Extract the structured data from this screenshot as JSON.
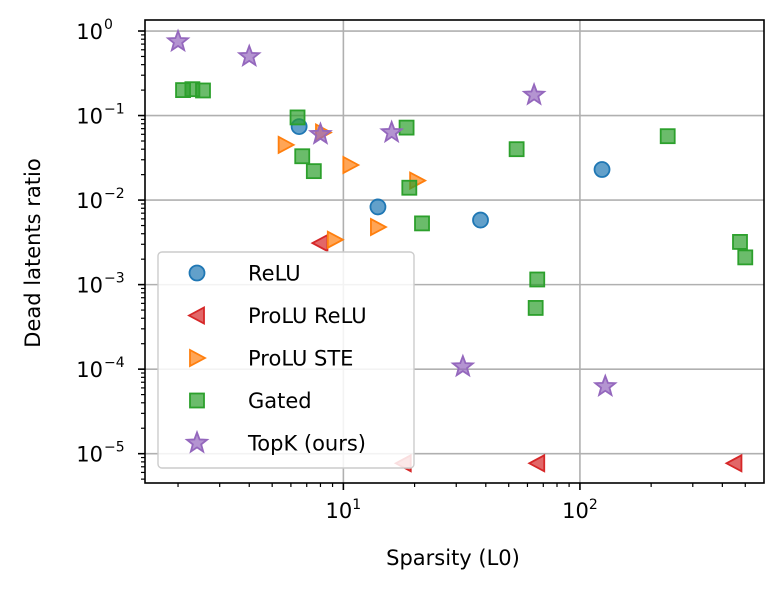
{
  "chart_data": {
    "type": "scatter",
    "xlabel": "Sparsity (L0)",
    "ylabel": "Dead latents ratio",
    "xscale": "log",
    "yscale": "log",
    "xlim": [
      1.45,
      600
    ],
    "ylim": [
      4.5e-06,
      1.35
    ],
    "grid": true,
    "legend_position": "lower-left",
    "x_tick_labels": [
      {
        "value": 10,
        "base": "10",
        "exp": "1"
      },
      {
        "value": 100,
        "base": "10",
        "exp": "2"
      }
    ],
    "y_tick_labels": [
      {
        "value": 1,
        "base": "10",
        "exp": "0"
      },
      {
        "value": 0.1,
        "base": "10",
        "exp": "−1"
      },
      {
        "value": 0.01,
        "base": "10",
        "exp": "−2"
      },
      {
        "value": 0.001,
        "base": "10",
        "exp": "−3"
      },
      {
        "value": 0.0001,
        "base": "10",
        "exp": "−4"
      },
      {
        "value": 1e-05,
        "base": "10",
        "exp": "−5"
      }
    ],
    "series": [
      {
        "name": "ReLU",
        "marker": "circle",
        "color": "#1f77b4",
        "points": [
          [
            6.5,
            0.074
          ],
          [
            14,
            0.0083
          ],
          [
            38,
            0.0058
          ],
          [
            124,
            0.023
          ]
        ]
      },
      {
        "name": "ProLU ReLU",
        "marker": "triangle-left",
        "color": "#d62728",
        "points": [
          [
            8,
            0.0031
          ],
          [
            18,
            7.7e-06
          ],
          [
            66,
            7.7e-06
          ],
          [
            450,
            7.7e-06
          ]
        ]
      },
      {
        "name": "ProLU STE",
        "marker": "triangle-right",
        "color": "#ff7f0e",
        "points": [
          [
            5.7,
            0.045
          ],
          [
            8.2,
            0.063
          ],
          [
            10.7,
            0.026
          ],
          [
            9.2,
            0.0034
          ],
          [
            14,
            0.0048
          ],
          [
            20.5,
            0.017
          ]
        ]
      },
      {
        "name": "Gated",
        "marker": "square",
        "color": "#2ca02c",
        "points": [
          [
            2.1,
            0.2
          ],
          [
            2.3,
            0.205
          ],
          [
            2.55,
            0.198
          ],
          [
            6.4,
            0.095
          ],
          [
            6.7,
            0.033
          ],
          [
            7.5,
            0.022
          ],
          [
            18.5,
            0.072
          ],
          [
            19,
            0.014
          ],
          [
            21.5,
            0.0053
          ],
          [
            54,
            0.04
          ],
          [
            66,
            0.00115
          ],
          [
            65,
            0.00053
          ],
          [
            235,
            0.057
          ],
          [
            475,
            0.0032
          ],
          [
            500,
            0.0021
          ]
        ]
      },
      {
        "name": "TopK (ours)",
        "marker": "star",
        "color": "#9467bd",
        "points": [
          [
            2,
            0.75
          ],
          [
            4,
            0.5
          ],
          [
            8,
            0.06
          ],
          [
            16,
            0.063
          ],
          [
            64,
            0.175
          ],
          [
            32,
            0.000107
          ],
          [
            128,
            6.25e-05
          ]
        ]
      }
    ]
  }
}
